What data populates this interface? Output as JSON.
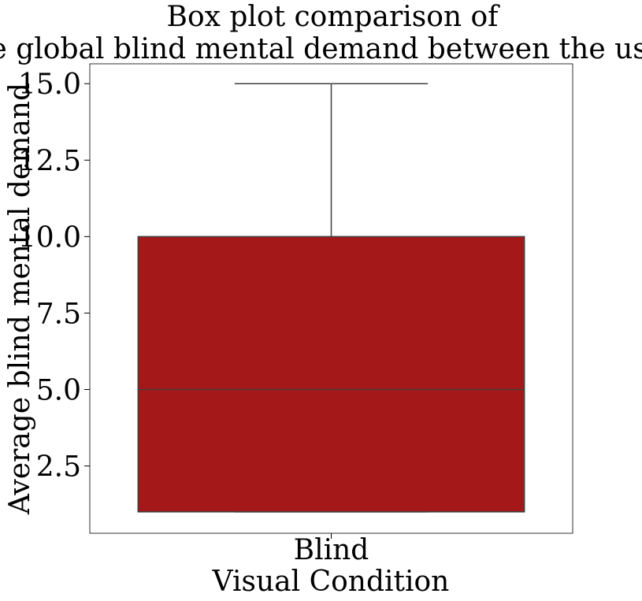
{
  "chart_data": {
    "type": "box",
    "title": [
      "Box plot comparison of",
      "the global blind mental demand between the users."
    ],
    "xlabel": "Visual Condition",
    "ylabel": "Average blind mental demand",
    "categories": [
      "Blind"
    ],
    "yticks": [
      2.5,
      5.0,
      7.5,
      10.0,
      12.5,
      15.0
    ],
    "ytick_labels": [
      "2.5",
      "5.0",
      "7.5",
      "10.0",
      "12.5",
      "15.0"
    ],
    "ylim": [
      0.3,
      15.65
    ],
    "grid": false,
    "boxes": [
      {
        "category": "Blind",
        "whisker_low": 1.0,
        "q1": 1.0,
        "median": 5.0,
        "q3": 10.0,
        "whisker_high": 15.0,
        "color": "#a51819"
      }
    ]
  }
}
